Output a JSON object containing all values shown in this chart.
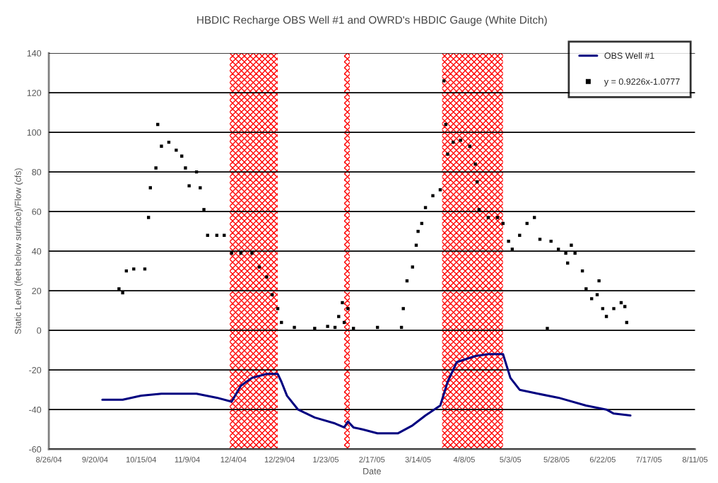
{
  "chart_data": {
    "type": "line",
    "title": "HBDIC Recharge OBS Well #1 and OWRD's HBDIC Gauge (White Ditch)",
    "xlabel": "Date",
    "ylabel": "Static Level (feet below surface)/Flow (cfs)",
    "series": [
      {
        "name": "OBS Well #1",
        "color": "#000080",
        "marker": "none",
        "line_style": "solid",
        "x": [
          "2004-09-24",
          "2004-10-05",
          "2004-10-15",
          "2004-10-26",
          "2004-11-14",
          "2004-11-25",
          "2004-12-03",
          "2004-12-08",
          "2004-12-14",
          "2004-12-22",
          "2004-12-28",
          "2004-12-30",
          "2005-01-02",
          "2005-01-08",
          "2005-01-17",
          "2005-01-28",
          "2005-02-02",
          "2005-02-04",
          "2005-02-07",
          "2005-02-12",
          "2005-02-20",
          "2005-03-03",
          "2005-03-11",
          "2005-03-18",
          "2005-03-26",
          "2005-03-30",
          "2005-04-04",
          "2005-04-14",
          "2005-04-21",
          "2005-04-29",
          "2005-05-03",
          "2005-05-08",
          "2005-05-18",
          "2005-05-29",
          "2005-06-13",
          "2005-06-24",
          "2005-06-28",
          "2005-07-07"
        ],
        "values": [
          -35,
          -35,
          -33,
          -32,
          -32,
          -34,
          -36,
          -28,
          -24,
          -22,
          -22,
          -26,
          -33,
          -40,
          -44,
          -47,
          -49,
          -46,
          -49,
          -50,
          -52,
          -52,
          -48,
          -43,
          -38,
          -26,
          -16,
          -13,
          -12,
          -12,
          -24,
          -30,
          -32,
          -34,
          -38,
          -40,
          -42,
          -43
        ]
      },
      {
        "name": "y = 0.9226x-1.0777",
        "type": "scatter",
        "color": "#000000",
        "marker": "square",
        "x": [
          "2004-10-03",
          "2004-10-05",
          "2004-10-07",
          "2004-10-11",
          "2004-10-17",
          "2004-10-19",
          "2004-10-20",
          "2004-10-23",
          "2004-10-24",
          "2004-10-26",
          "2004-10-30",
          "2004-11-03",
          "2004-11-06",
          "2004-11-08",
          "2004-11-10",
          "2004-11-14",
          "2004-11-16",
          "2004-11-18",
          "2004-11-20",
          "2004-11-25",
          "2004-11-29",
          "2004-12-03",
          "2004-12-08",
          "2004-12-14",
          "2004-12-18",
          "2004-12-22",
          "2004-12-25",
          "2004-12-28",
          "2004-12-30",
          "2005-01-06",
          "2005-01-17",
          "2005-01-24",
          "2005-01-28",
          "2005-01-30",
          "2005-02-01",
          "2005-02-02",
          "2005-02-04",
          "2005-02-07",
          "2005-02-20",
          "2005-03-05",
          "2005-03-06",
          "2005-03-08",
          "2005-03-11",
          "2005-03-13",
          "2005-03-14",
          "2005-03-16",
          "2005-03-18",
          "2005-03-22",
          "2005-03-26",
          "2005-03-28",
          "2005-03-29",
          "2005-03-30",
          "2005-04-02",
          "2005-04-06",
          "2005-04-11",
          "2005-04-14",
          "2005-04-15",
          "2005-04-16",
          "2005-04-21",
          "2005-04-26",
          "2005-04-29",
          "2005-05-02",
          "2005-05-04",
          "2005-05-08",
          "2005-05-12",
          "2005-05-16",
          "2005-05-19",
          "2005-05-23",
          "2005-05-25",
          "2005-05-29",
          "2005-06-02",
          "2005-06-03",
          "2005-06-05",
          "2005-06-07",
          "2005-06-11",
          "2005-06-13",
          "2005-06-16",
          "2005-06-19",
          "2005-06-20",
          "2005-06-22",
          "2005-06-24",
          "2005-06-28",
          "2005-07-02",
          "2005-07-04",
          "2005-07-05"
        ],
        "values": [
          21,
          19,
          30,
          31,
          31,
          57,
          72,
          82,
          104,
          93,
          95,
          91,
          88,
          82,
          73,
          80,
          72,
          61,
          48,
          48,
          48,
          39,
          39,
          39,
          32,
          27,
          18,
          11,
          4,
          1.5,
          1,
          2,
          1.5,
          7,
          14,
          4,
          11,
          1,
          1.5,
          1.5,
          11,
          25,
          32,
          43,
          50,
          54,
          62,
          68,
          71,
          126,
          104,
          89,
          95,
          96,
          93,
          84,
          75,
          61,
          57,
          57,
          54,
          45,
          41,
          48,
          54,
          57,
          46,
          1,
          45,
          41,
          39,
          34,
          43,
          39,
          30,
          21,
          16,
          18,
          25,
          11,
          7,
          11,
          14,
          12,
          4
        ]
      }
    ],
    "xlim": [
      "2004-08-26",
      "2005-08-11"
    ],
    "xticks": [
      {
        "value": "2004-08-26",
        "label": "8/26/04"
      },
      {
        "value": "2004-09-20",
        "label": "9/20/04"
      },
      {
        "value": "2004-10-15",
        "label": "10/15/04"
      },
      {
        "value": "2004-11-09",
        "label": "11/9/04"
      },
      {
        "value": "2004-12-04",
        "label": "12/4/04"
      },
      {
        "value": "2004-12-29",
        "label": "12/29/04"
      },
      {
        "value": "2005-01-23",
        "label": "1/23/05"
      },
      {
        "value": "2005-02-17",
        "label": "2/17/05"
      },
      {
        "value": "2005-03-14",
        "label": "3/14/05"
      },
      {
        "value": "2005-04-08",
        "label": "4/8/05"
      },
      {
        "value": "2005-05-03",
        "label": "5/3/05"
      },
      {
        "value": "2005-05-28",
        "label": "5/28/05"
      },
      {
        "value": "2005-06-22",
        "label": "6/22/05"
      },
      {
        "value": "2005-07-17",
        "label": "7/17/05"
      },
      {
        "value": "2005-08-11",
        "label": "8/11/05"
      }
    ],
    "ylim": [
      -60,
      140
    ],
    "yticks": [
      -60,
      -40,
      -20,
      0,
      20,
      40,
      60,
      80,
      100,
      120,
      140
    ],
    "bands": [
      {
        "axis": "x",
        "from": "2004-12-02",
        "to": "2004-12-28",
        "color": "#ff0000"
      },
      {
        "axis": "x",
        "from": "2005-02-02",
        "to": "2005-02-05",
        "color": "#ff0000"
      },
      {
        "axis": "x",
        "from": "2005-03-27",
        "to": "2005-04-29",
        "color": "#ff0000"
      }
    ],
    "grid": "y",
    "legend": "top right"
  }
}
